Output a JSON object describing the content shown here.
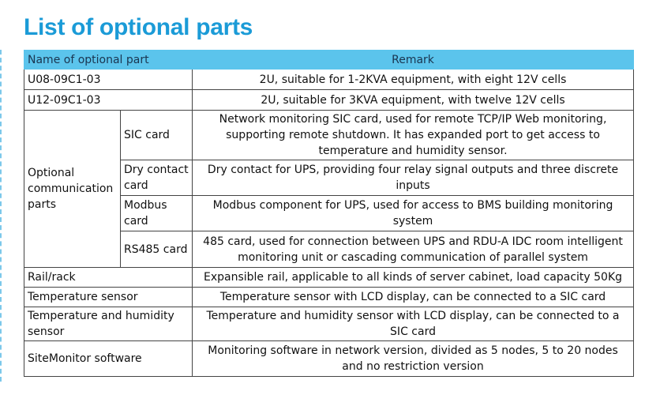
{
  "title": "List of optional parts",
  "table": {
    "header": [
      "Name of optional part",
      "Remark"
    ],
    "rows": [
      [
        "U08-09C1-03",
        "2U, suitable for 1-2KVA equipment, with eight 12V  cells"
      ],
      [
        "U12-09C1-03",
        "2U, suitable for 3KVA equipment, with twelve 12V  cells"
      ],
      {
        "label": "Optional communication parts",
        "items": [
          [
            "SIC card",
            "Network monitoring SIC card, used for remote TCP/IP Web monitoring, supporting remote shutdown. It has expanded port to get access to temperature and humidity sensor."
          ],
          [
            "Dry contact card",
            "Dry contact for UPS, providing four relay signal outputs and three discrete inputs"
          ],
          [
            "Modbus card",
            "Modbus component for UPS, used for access to BMS building monitoring system"
          ],
          [
            "RS485 card",
            "485 card, used for connection between UPS and RDU-A IDC room intelligent monitoring unit or cascading communication of parallel system"
          ]
        ]
      },
      [
        "Rail/rack",
        "Expansible rail, applicable to all kinds of server cabinet, load capacity 50Kg"
      ],
      [
        "Temperature sensor",
        "Temperature sensor with LCD display, can be connected to a SIC card"
      ],
      [
        "Temperature and humidity sensor",
        "Temperature and humidity sensor with LCD display, can be connected to a SIC card"
      ],
      [
        "SiteMonitor software",
        "Monitoring software in network version, divided as 5 nodes, 5 to 20 nodes and no restriction version"
      ]
    ]
  }
}
